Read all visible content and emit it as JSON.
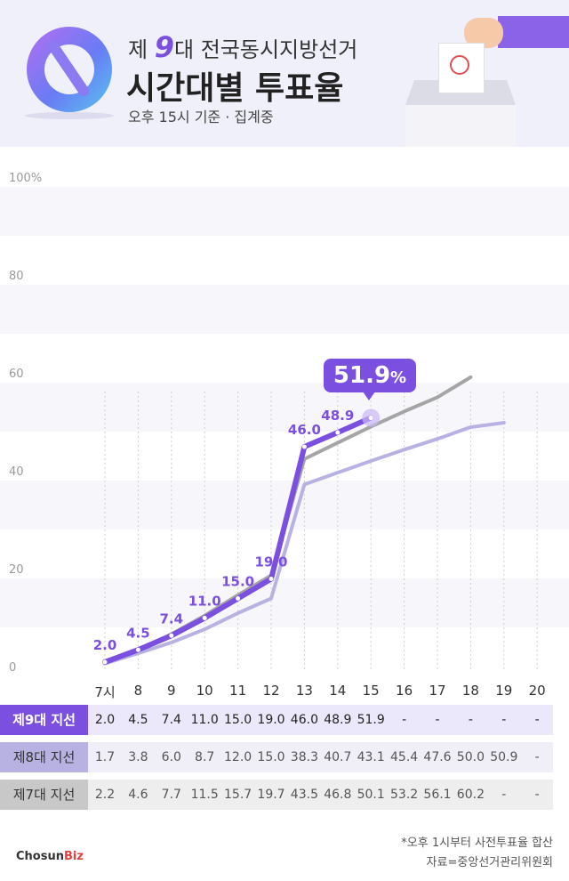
{
  "header": {
    "title_prefix": "제",
    "title_nine": "9",
    "title_suffix": "대 전국동시지방선거",
    "title_main": "시간대별 투표율",
    "subtitle": "오후 15시 기준 · 집계중"
  },
  "chart_data": {
    "type": "line",
    "categories": [
      "7시",
      "8",
      "9",
      "10",
      "11",
      "12",
      "13",
      "14",
      "15",
      "16",
      "17",
      "18",
      "19",
      "20"
    ],
    "ylim": [
      0,
      100
    ],
    "yticks": [
      "0",
      "20",
      "40",
      "60",
      "80",
      "100%"
    ],
    "grid": "horizontal-bands",
    "series": [
      {
        "name": "제9대 지선",
        "values": [
          2.0,
          4.5,
          7.4,
          11.0,
          15.0,
          19.0,
          46.0,
          48.9,
          51.9,
          null,
          null,
          null,
          null,
          null
        ],
        "labels": [
          "2.0",
          "4.5",
          "7.4",
          "11.0",
          "15.0",
          "19.0",
          "46.0",
          "48.9",
          null,
          "-",
          "-",
          "-",
          "-",
          "-"
        ],
        "color": "#7b4fe0"
      },
      {
        "name": "제8대 지선",
        "values": [
          1.7,
          3.8,
          6.0,
          8.7,
          12.0,
          15.0,
          38.3,
          40.7,
          43.1,
          45.4,
          47.6,
          50.0,
          50.9,
          null
        ],
        "labels": [
          "1.7",
          "3.8",
          "6.0",
          "8.7",
          "12.0",
          "15.0",
          "38.3",
          "40.7",
          "43.1",
          "45.4",
          "47.6",
          "50.0",
          "50.9",
          "-"
        ],
        "color": "#b8b2e3"
      },
      {
        "name": "제7대 지선",
        "values": [
          2.2,
          4.6,
          7.7,
          11.5,
          15.7,
          19.7,
          43.5,
          46.8,
          50.1,
          53.2,
          56.1,
          60.2,
          null,
          null
        ],
        "labels": [
          "2.2",
          "4.6",
          "7.7",
          "11.5",
          "15.7",
          "19.7",
          "43.5",
          "46.8",
          "50.1",
          "53.2",
          "56.1",
          "60.2",
          "-",
          "-"
        ],
        "color": "#a5a5a5"
      }
    ],
    "table_values": [
      [
        "2.0",
        "4.5",
        "7.4",
        "11.0",
        "15.0",
        "19.0",
        "46.0",
        "48.9",
        "51.9",
        "-",
        "-",
        "-",
        "-",
        "-"
      ],
      [
        "1.7",
        "3.8",
        "6.0",
        "8.7",
        "12.0",
        "15.0",
        "38.3",
        "40.7",
        "43.1",
        "45.4",
        "47.6",
        "50.0",
        "50.9",
        "-"
      ],
      [
        "2.2",
        "4.6",
        "7.7",
        "11.5",
        "15.7",
        "19.7",
        "43.5",
        "46.8",
        "50.1",
        "53.2",
        "56.1",
        "60.2",
        "-",
        "-"
      ]
    ],
    "callout": {
      "value": "51.9",
      "unit": "%"
    }
  },
  "footer": {
    "note": "*오후 1시부터 사전투표율 합산",
    "source": "자료=중앙선거관리위원회",
    "brand_a": "Chosun",
    "brand_b": "Biz"
  },
  "colors": {
    "accent": "#7b4fe0",
    "series8": "#b8b2e3",
    "series7": "#a5a5a5"
  }
}
